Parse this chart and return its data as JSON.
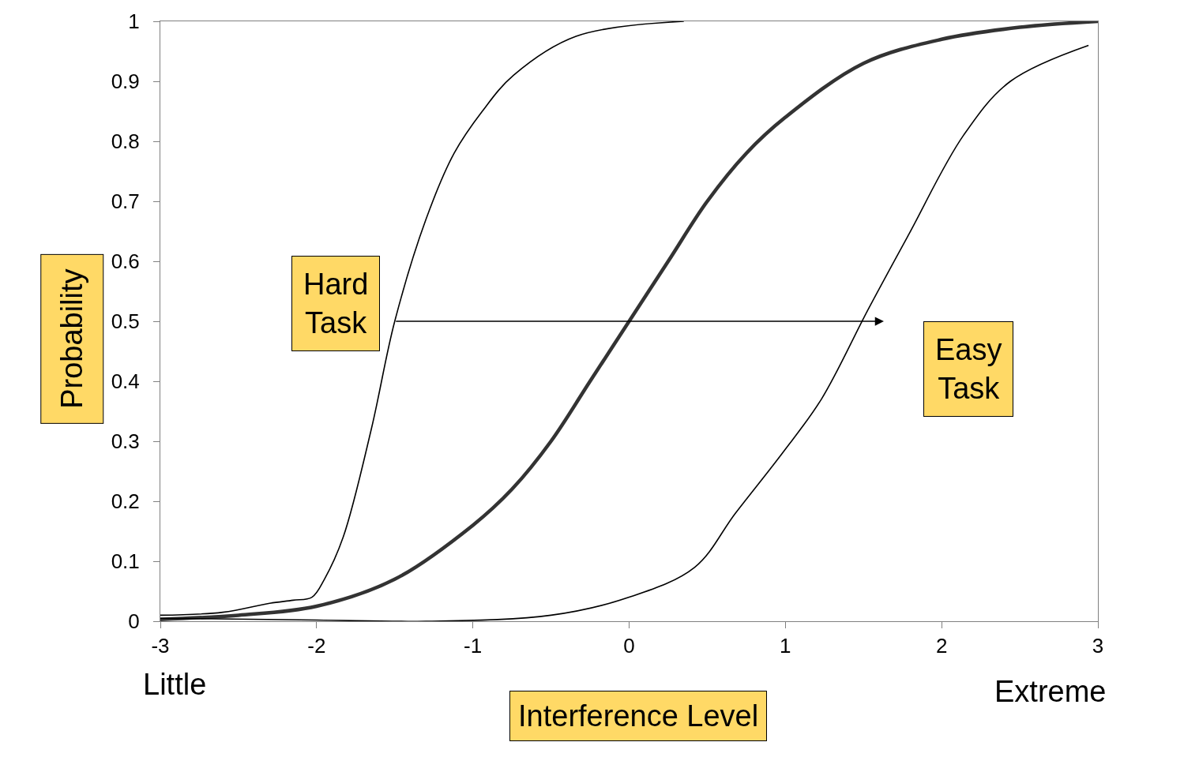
{
  "chart_data": {
    "type": "line",
    "xlabel": "Interference Level",
    "ylabel": "Probability",
    "xlim": [
      -3,
      3
    ],
    "xticks": [
      -3,
      -2,
      -1,
      0,
      1,
      2,
      3
    ],
    "ylim": [
      0,
      1
    ],
    "yticks": [
      0,
      0.1,
      0.2,
      0.3,
      0.4,
      0.5,
      0.6,
      0.7,
      0.8,
      0.9,
      1
    ],
    "marker": "none",
    "line_style": "solid",
    "annotations": [
      "Hard Task",
      "Easy Task",
      "Little",
      "Extreme"
    ],
    "series": [
      {
        "color": "#000000",
        "x": [
          -3,
          -2.6,
          -2.3,
          -2.15,
          -2.03,
          -1.95,
          -1.83,
          -1.65,
          -1.5,
          -1.3,
          -1.12,
          -0.94,
          -0.74,
          -0.34,
          0.35
        ],
        "values": [
          0.01,
          0.015,
          0.03,
          0.035,
          0.04,
          0.07,
          0.14,
          0.32,
          0.5,
          0.67,
          0.78,
          0.85,
          0.91,
          0.975,
          1.0
        ]
      },
      {
        "color": "#333333",
        "x": [
          -3,
          -2.5,
          -2,
          -1.5,
          -1,
          -0.75,
          -0.5,
          -0.25,
          0,
          0.25,
          0.5,
          0.75,
          1,
          1.5,
          2,
          2.5,
          3
        ],
        "values": [
          0.003,
          0.01,
          0.025,
          0.07,
          0.16,
          0.22,
          0.3,
          0.4,
          0.5,
          0.6,
          0.7,
          0.78,
          0.84,
          0.93,
          0.97,
          0.99,
          1.0
        ]
      },
      {
        "color": "#000000",
        "x": [
          -3,
          -2,
          -1.3,
          -0.5,
          0,
          0.42,
          0.68,
          0.98,
          1.23,
          1.53,
          1.79,
          2.14,
          2.44,
          2.94
        ],
        "values": [
          0.005,
          0.002,
          0,
          0.01,
          0.04,
          0.09,
          0.18,
          0.28,
          0.37,
          0.52,
          0.645,
          0.81,
          0.9,
          0.96
        ]
      }
    ]
  }
}
